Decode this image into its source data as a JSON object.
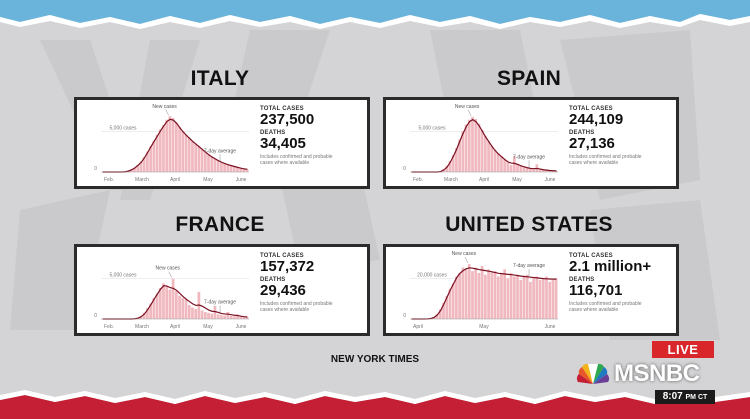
{
  "source": "NEW YORK TIMES",
  "broadcast": {
    "live_label": "LIVE",
    "network_name": "MSNBC",
    "time": "8:07",
    "time_suffix": "PM CT"
  },
  "colors": {
    "accent_red": "#c8102e",
    "bar_fill": "#f0b8bf",
    "avg_line": "#7a1020"
  },
  "panels": [
    {
      "country": "ITALY",
      "total_cases_label": "TOTAL CASES",
      "total_cases": "237,500",
      "deaths_label": "DEATHS",
      "deaths": "34,405",
      "note": "Includes confirmed and probable cases where available"
    },
    {
      "country": "SPAIN",
      "total_cases_label": "TOTAL CASES",
      "total_cases": "244,109",
      "deaths_label": "DEATHS",
      "deaths": "27,136",
      "note": "Includes confirmed and probable cases where available"
    },
    {
      "country": "FRANCE",
      "total_cases_label": "TOTAL CASES",
      "total_cases": "157,372",
      "deaths_label": "DEATHS",
      "deaths": "29,436",
      "note": "Includes confirmed and probable cases where available"
    },
    {
      "country": "UNITED STATES",
      "total_cases_label": "TOTAL CASES",
      "total_cases": "2.1 million+",
      "deaths_label": "DEATHS",
      "deaths": "116,701",
      "note": "Includes confirmed and probable cases where available"
    }
  ],
  "chart_data": [
    {
      "type": "bar",
      "title": "ITALY",
      "x_ticks": [
        "Feb.",
        "March",
        "April",
        "May",
        "June"
      ],
      "y_ticks": [
        "0",
        "5,000 cases"
      ],
      "ylim": [
        0,
        7000
      ],
      "annotations": [
        "New cases",
        "7-day average"
      ],
      "series": [
        {
          "name": "New cases",
          "values": [
            0,
            0,
            0,
            0,
            0,
            0,
            0,
            50,
            150,
            300,
            500,
            800,
            1200,
            1700,
            2300,
            2900,
            3500,
            4200,
            4800,
            5300,
            5900,
            6300,
            6100,
            5600,
            5100,
            4600,
            4200,
            3900,
            3500,
            3200,
            2900,
            2600,
            2300,
            2000,
            1700,
            1500,
            1300,
            1100,
            950,
            850,
            750,
            650,
            550,
            450,
            350,
            300
          ]
        },
        {
          "name": "7-day average",
          "values": [
            0,
            0,
            0,
            0,
            0,
            0,
            0,
            30,
            100,
            250,
            450,
            750,
            1100,
            1600,
            2200,
            2850,
            3450,
            4050,
            4650,
            5200,
            5700,
            5950,
            5850,
            5500,
            5000,
            4550,
            4150,
            3800,
            3450,
            3150,
            2850,
            2550,
            2250,
            1950,
            1700,
            1480,
            1280,
            1100,
            950,
            830,
            720,
            620,
            520,
            430,
            350,
            300
          ]
        }
      ]
    },
    {
      "type": "bar",
      "title": "SPAIN",
      "x_ticks": [
        "Feb.",
        "March",
        "April",
        "May",
        "June"
      ],
      "y_ticks": [
        "0",
        "5,000 cases"
      ],
      "ylim": [
        0,
        9000
      ],
      "annotations": [
        "New cases",
        "7-day average"
      ],
      "series": [
        {
          "name": "New cases",
          "values": [
            0,
            0,
            0,
            0,
            0,
            0,
            0,
            0,
            0,
            100,
            400,
            900,
            1600,
            2500,
            3500,
            4700,
            5900,
            6900,
            7600,
            8000,
            7700,
            7000,
            6100,
            5200,
            4500,
            3800,
            3200,
            2700,
            2300,
            1800,
            1400,
            1000,
            2300,
            1200,
            900,
            700,
            600,
            500,
            400,
            1100,
            350,
            300,
            250,
            200,
            180,
            150
          ]
        },
        {
          "name": "7-day average",
          "values": [
            0,
            0,
            0,
            0,
            0,
            0,
            0,
            0,
            0,
            60,
            300,
            700,
            1400,
            2300,
            3300,
            4500,
            5600,
            6600,
            7300,
            7600,
            7300,
            6700,
            5900,
            5100,
            4400,
            3700,
            3100,
            2600,
            2200,
            1800,
            1450,
            1300,
            1250,
            1100,
            900,
            750,
            620,
            520,
            480,
            520,
            430,
            330,
            270,
            220,
            190,
            160
          ]
        }
      ]
    },
    {
      "type": "bar",
      "title": "FRANCE",
      "x_ticks": [
        "Feb.",
        "March",
        "April",
        "May",
        "June"
      ],
      "y_ticks": [
        "0",
        "5,000 cases"
      ],
      "ylim": [
        0,
        8000
      ],
      "annotations": [
        "New cases",
        "7-day average"
      ],
      "series": [
        {
          "name": "New cases",
          "values": [
            0,
            0,
            0,
            0,
            0,
            0,
            0,
            0,
            0,
            0,
            50,
            150,
            400,
            800,
            1400,
            2000,
            2700,
            3300,
            4000,
            4600,
            4200,
            3800,
            5200,
            3600,
            3000,
            2700,
            2500,
            1800,
            1500,
            1300,
            3500,
            1100,
            900,
            800,
            700,
            1700,
            600,
            500,
            450,
            900,
            400,
            350,
            600,
            300,
            280,
            250
          ]
        },
        {
          "name": "7-day average",
          "values": [
            0,
            0,
            0,
            0,
            0,
            0,
            0,
            0,
            0,
            0,
            30,
            100,
            300,
            650,
            1200,
            1850,
            2550,
            3200,
            3850,
            4300,
            4250,
            4050,
            3950,
            3700,
            3300,
            2900,
            2550,
            2250,
            1950,
            1750,
            1800,
            1650,
            1400,
            1150,
            1000,
            950,
            850,
            700,
            650,
            620,
            560,
            480,
            440,
            360,
            300,
            260
          ]
        }
      ]
    },
    {
      "type": "bar",
      "title": "UNITED STATES",
      "x_ticks": [
        "April",
        "May",
        "June"
      ],
      "y_ticks": [
        "0",
        "20,000 cases"
      ],
      "ylim": [
        0,
        35000
      ],
      "annotations": [
        "New cases",
        "7-day average"
      ],
      "series": [
        {
          "name": "New cases",
          "values": [
            0,
            0,
            0,
            0,
            0,
            100,
            400,
            1200,
            2800,
            5500,
            9000,
            13000,
            17000,
            20000,
            24000,
            26000,
            29000,
            28000,
            31000,
            27000,
            29000,
            26000,
            30000,
            25000,
            28000,
            26000,
            27000,
            24000,
            26000,
            28000,
            23000,
            26000,
            24000,
            25000,
            22000,
            24000,
            25000,
            21000,
            23000,
            24000,
            22000,
            23000,
            24000,
            21000,
            22000,
            23000
          ]
        },
        {
          "name": "7-day average",
          "values": [
            0,
            0,
            0,
            0,
            0,
            60,
            300,
            900,
            2300,
            4800,
            8300,
            12300,
            16300,
            19800,
            23300,
            25700,
            27300,
            28400,
            28900,
            28700,
            28300,
            27900,
            27600,
            27300,
            27000,
            26600,
            26200,
            25800,
            25600,
            25400,
            25200,
            25000,
            24800,
            24500,
            24200,
            24000,
            23800,
            23600,
            23400,
            23200,
            23000,
            22800,
            22700,
            22600,
            22500,
            22500
          ]
        }
      ]
    }
  ]
}
